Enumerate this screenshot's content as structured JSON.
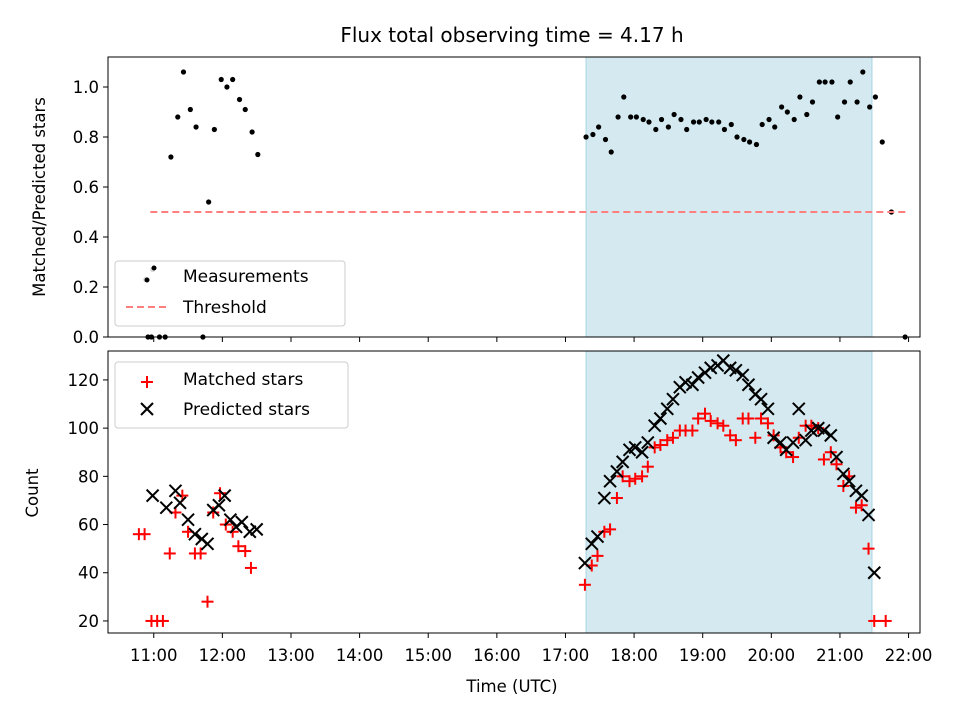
{
  "title": "Flux total observing time = 4.17 h",
  "chart_data": [
    {
      "type": "scatter",
      "ylabel": "Matched/Predicted stars",
      "xlabel": "",
      "xlim": [
        "10:20",
        "22:10"
      ],
      "ylim": [
        0,
        1.12
      ],
      "yticks": [
        "0.0",
        "0.2",
        "0.4",
        "0.6",
        "0.8",
        "1.0"
      ],
      "shaded_region": {
        "x_start": "17:18",
        "x_end": "21:28",
        "color": "#d4eaf0"
      },
      "legend": {
        "position": "lower-left"
      },
      "series": [
        {
          "name": "Measurements",
          "marker": "dot",
          "color": "#000000",
          "points": [
            [
              "10:53",
              0.23
            ],
            [
              "10:55",
              0.0
            ],
            [
              "10:58",
              0.0
            ],
            [
              "10:59",
              0.27
            ],
            [
              "11:05",
              0.0
            ],
            [
              "11:10",
              0.0
            ],
            [
              "11:15",
              0.72
            ],
            [
              "11:21",
              0.88
            ],
            [
              "11:26",
              1.06
            ],
            [
              "11:32",
              0.91
            ],
            [
              "11:37",
              0.84
            ],
            [
              "11:43",
              0.0
            ],
            [
              "11:48",
              0.54
            ],
            [
              "11:53",
              0.83
            ],
            [
              "11:59",
              1.03
            ],
            [
              "12:04",
              1.0
            ],
            [
              "12:09",
              1.03
            ],
            [
              "12:15",
              0.95
            ],
            [
              "12:20",
              0.91
            ],
            [
              "12:26",
              0.82
            ],
            [
              "12:31",
              0.73
            ],
            [
              "17:18",
              0.8
            ],
            [
              "17:24",
              0.81
            ],
            [
              "17:29",
              0.84
            ],
            [
              "17:35",
              0.79
            ],
            [
              "17:40",
              0.74
            ],
            [
              "17:46",
              0.88
            ],
            [
              "17:51",
              0.96
            ],
            [
              "17:57",
              0.88
            ],
            [
              "18:02",
              0.88
            ],
            [
              "18:08",
              0.87
            ],
            [
              "18:13",
              0.86
            ],
            [
              "18:19",
              0.83
            ],
            [
              "18:24",
              0.87
            ],
            [
              "18:30",
              0.84
            ],
            [
              "18:35",
              0.89
            ],
            [
              "18:41",
              0.87
            ],
            [
              "18:46",
              0.83
            ],
            [
              "18:52",
              0.86
            ],
            [
              "18:57",
              0.86
            ],
            [
              "19:03",
              0.87
            ],
            [
              "19:08",
              0.86
            ],
            [
              "19:14",
              0.86
            ],
            [
              "19:19",
              0.83
            ],
            [
              "19:25",
              0.85
            ],
            [
              "19:30",
              0.8
            ],
            [
              "19:36",
              0.79
            ],
            [
              "19:41",
              0.78
            ],
            [
              "19:47",
              0.77
            ],
            [
              "19:52",
              0.85
            ],
            [
              "19:58",
              0.87
            ],
            [
              "20:03",
              0.84
            ],
            [
              "20:09",
              0.92
            ],
            [
              "20:14",
              0.9
            ],
            [
              "20:20",
              0.87
            ],
            [
              "20:25",
              0.96
            ],
            [
              "20:31",
              0.89
            ],
            [
              "20:36",
              0.94
            ],
            [
              "20:42",
              1.02
            ],
            [
              "20:47",
              1.02
            ],
            [
              "20:53",
              1.02
            ],
            [
              "20:58",
              0.88
            ],
            [
              "21:04",
              0.94
            ],
            [
              "21:09",
              1.02
            ],
            [
              "21:15",
              0.94
            ],
            [
              "21:20",
              1.06
            ],
            [
              "21:26",
              0.92
            ],
            [
              "21:31",
              0.96
            ],
            [
              "21:37",
              0.78
            ],
            [
              "21:45",
              0.5
            ],
            [
              "21:57",
              0.0
            ]
          ]
        },
        {
          "name": "Threshold",
          "marker": "dashed-line",
          "color": "#ff7f7f",
          "points": [
            [
              "10:57",
              0.5
            ],
            [
              "22:00",
              0.5
            ]
          ]
        }
      ]
    },
    {
      "type": "scatter",
      "ylabel": "Count",
      "xlabel": "Time (UTC)",
      "xlim": [
        "10:20",
        "22:10"
      ],
      "ylim": [
        15,
        132
      ],
      "yticks": [
        "20",
        "40",
        "60",
        "80",
        "100",
        "120"
      ],
      "xticks": [
        "11:00",
        "12:00",
        "13:00",
        "14:00",
        "15:00",
        "16:00",
        "17:00",
        "18:00",
        "19:00",
        "20:00",
        "21:00",
        "22:00"
      ],
      "shaded_region": {
        "x_start": "17:18",
        "x_end": "21:28",
        "color": "#d4eaf0"
      },
      "legend": {
        "position": "top-left"
      },
      "series": [
        {
          "name": "Matched stars",
          "marker": "plus",
          "color": "#ff0000",
          "points": [
            [
              "10:47",
              56
            ],
            [
              "10:52",
              56
            ],
            [
              "10:58",
              20
            ],
            [
              "11:03",
              20
            ],
            [
              "11:08",
              20
            ],
            [
              "11:14",
              48
            ],
            [
              "11:19",
              65
            ],
            [
              "11:25",
              72
            ],
            [
              "11:30",
              57
            ],
            [
              "11:36",
              48
            ],
            [
              "11:41",
              48
            ],
            [
              "11:47",
              28
            ],
            [
              "11:52",
              65
            ],
            [
              "11:58",
              73
            ],
            [
              "12:03",
              60
            ],
            [
              "12:09",
              57
            ],
            [
              "12:14",
              51
            ],
            [
              "12:20",
              49
            ],
            [
              "12:25",
              42
            ],
            [
              "17:17",
              35
            ],
            [
              "17:23",
              43
            ],
            [
              "17:28",
              47
            ],
            [
              "17:34",
              57
            ],
            [
              "17:39",
              58
            ],
            [
              "17:45",
              71
            ],
            [
              "17:50",
              80
            ],
            [
              "17:56",
              78
            ],
            [
              "18:01",
              79
            ],
            [
              "18:07",
              80
            ],
            [
              "18:12",
              84
            ],
            [
              "18:18",
              92
            ],
            [
              "18:23",
              93
            ],
            [
              "18:29",
              95
            ],
            [
              "18:34",
              96
            ],
            [
              "18:40",
              99
            ],
            [
              "18:45",
              99
            ],
            [
              "18:51",
              99
            ],
            [
              "18:56",
              104
            ],
            [
              "19:02",
              106
            ],
            [
              "19:07",
              103
            ],
            [
              "19:13",
              102
            ],
            [
              "19:18",
              101
            ],
            [
              "19:24",
              97
            ],
            [
              "19:29",
              95
            ],
            [
              "19:35",
              104
            ],
            [
              "19:40",
              104
            ],
            [
              "19:46",
              96
            ],
            [
              "19:51",
              104
            ],
            [
              "19:57",
              102
            ],
            [
              "20:02",
              97
            ],
            [
              "20:08",
              92
            ],
            [
              "20:13",
              90
            ],
            [
              "20:19",
              88
            ],
            [
              "20:24",
              96
            ],
            [
              "20:30",
              101
            ],
            [
              "20:35",
              101
            ],
            [
              "20:41",
              100
            ],
            [
              "20:46",
              87
            ],
            [
              "20:52",
              90
            ],
            [
              "20:57",
              85
            ],
            [
              "21:03",
              76
            ],
            [
              "21:08",
              80
            ],
            [
              "21:14",
              67
            ],
            [
              "21:19",
              68
            ],
            [
              "21:25",
              50
            ],
            [
              "21:30",
              20
            ],
            [
              "21:40",
              20
            ]
          ]
        },
        {
          "name": "Predicted stars",
          "marker": "x",
          "color": "#000000",
          "points": [
            [
              "10:59",
              72
            ],
            [
              "11:11",
              67
            ],
            [
              "11:19",
              74
            ],
            [
              "11:23",
              69
            ],
            [
              "11:30",
              62
            ],
            [
              "11:36",
              56
            ],
            [
              "11:42",
              54
            ],
            [
              "11:47",
              52
            ],
            [
              "11:52",
              66
            ],
            [
              "11:57",
              68
            ],
            [
              "12:02",
              72
            ],
            [
              "12:07",
              62
            ],
            [
              "12:12",
              59
            ],
            [
              "12:17",
              61
            ],
            [
              "12:24",
              57
            ],
            [
              "12:30",
              58
            ],
            [
              "17:17",
              44
            ],
            [
              "17:23",
              52
            ],
            [
              "17:28",
              55
            ],
            [
              "17:34",
              71
            ],
            [
              "17:39",
              78
            ],
            [
              "17:45",
              82
            ],
            [
              "17:50",
              86
            ],
            [
              "17:56",
              91
            ],
            [
              "18:01",
              92
            ],
            [
              "18:07",
              90
            ],
            [
              "18:12",
              94
            ],
            [
              "18:18",
              101
            ],
            [
              "18:23",
              104
            ],
            [
              "18:29",
              108
            ],
            [
              "18:34",
              112
            ],
            [
              "18:40",
              117
            ],
            [
              "18:45",
              119
            ],
            [
              "18:51",
              118
            ],
            [
              "18:56",
              121
            ],
            [
              "19:02",
              123
            ],
            [
              "19:07",
              125
            ],
            [
              "19:13",
              126
            ],
            [
              "19:18",
              128
            ],
            [
              "19:24",
              125
            ],
            [
              "19:29",
              124
            ],
            [
              "19:35",
              122
            ],
            [
              "19:40",
              118
            ],
            [
              "19:46",
              114
            ],
            [
              "19:51",
              112
            ],
            [
              "19:57",
              108
            ],
            [
              "20:02",
              96
            ],
            [
              "20:08",
              94
            ],
            [
              "20:13",
              91
            ],
            [
              "20:19",
              94
            ],
            [
              "20:24",
              108
            ],
            [
              "20:30",
              95
            ],
            [
              "20:35",
              99
            ],
            [
              "20:41",
              100
            ],
            [
              "20:46",
              99
            ],
            [
              "20:52",
              97
            ],
            [
              "20:57",
              88
            ],
            [
              "21:03",
              81
            ],
            [
              "21:08",
              78
            ],
            [
              "21:14",
              74
            ],
            [
              "21:19",
              72
            ],
            [
              "21:25",
              64
            ],
            [
              "21:30",
              40
            ]
          ]
        }
      ]
    }
  ]
}
